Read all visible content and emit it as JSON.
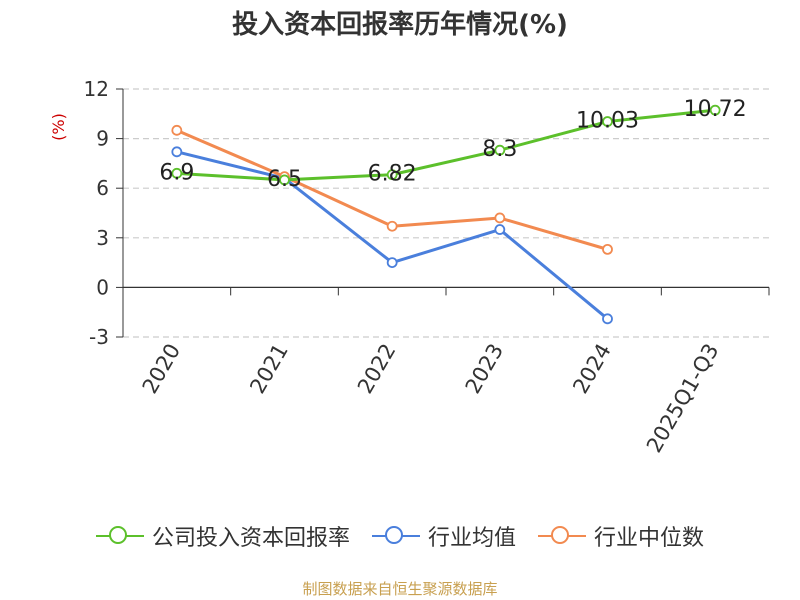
{
  "chart_data": {
    "type": "line",
    "title": "投入资本回报率历年情况(%)",
    "ylabel": "(%)",
    "xlabel": "",
    "categories": [
      "2020",
      "2021",
      "2022",
      "2023",
      "2024",
      "2025Q1-Q3"
    ],
    "yticks": [
      -3,
      0,
      3,
      6,
      9,
      12
    ],
    "ylim": [
      -3,
      12
    ],
    "grid": "horizontal dashed",
    "legend_position": "bottom",
    "series": [
      {
        "name": "公司投入资本回报率",
        "color": "#5cc02b",
        "values": [
          6.9,
          6.5,
          6.82,
          8.3,
          10.03,
          10.72
        ],
        "labels": [
          "6.9",
          "6.5",
          "6.82",
          "8.3",
          "10.03",
          "10.72"
        ]
      },
      {
        "name": "行业均值",
        "color": "#4a7fdc",
        "values": [
          8.2,
          6.6,
          1.5,
          3.5,
          -1.9,
          null
        ]
      },
      {
        "name": "行业中位数",
        "color": "#f28a50",
        "values": [
          9.5,
          6.7,
          3.7,
          4.2,
          2.3,
          null
        ]
      }
    ]
  },
  "source": "制图数据来自恒生聚源数据库"
}
